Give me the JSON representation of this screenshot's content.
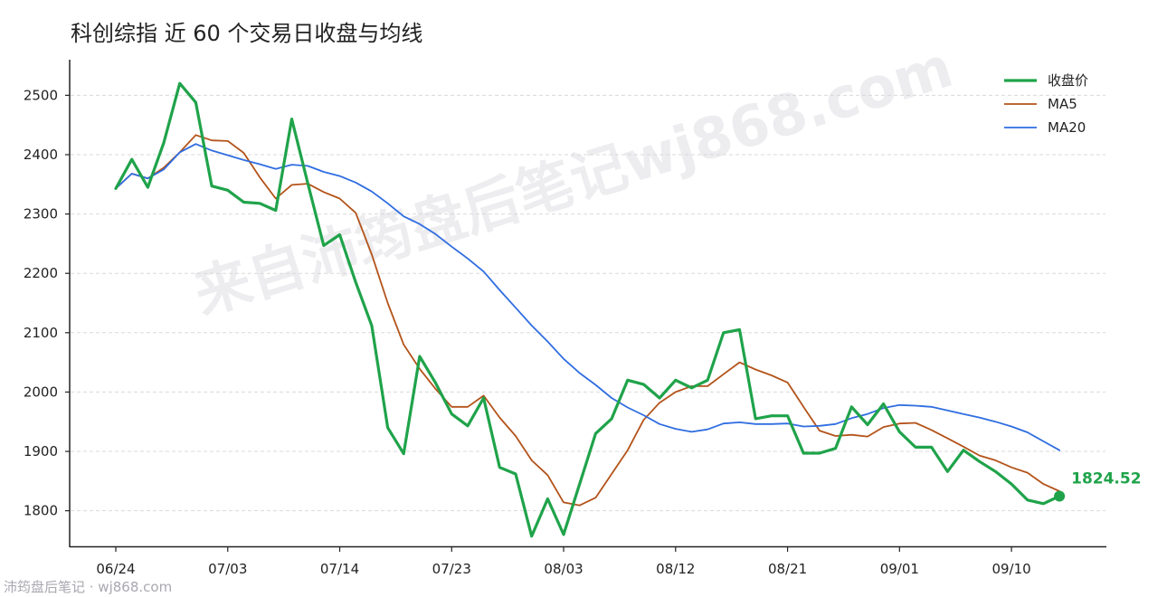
{
  "chart_data": {
    "type": "line",
    "title": "科创综指 近 60 个交易日收盘与均线",
    "xlabel": "",
    "ylabel": "",
    "x_ticks": [
      "06/24",
      "07/03",
      "07/14",
      "07/23",
      "08/03",
      "08/12",
      "08/21",
      "09/01",
      "09/10"
    ],
    "x_tick_index": [
      0,
      7,
      14,
      21,
      28,
      35,
      42,
      49,
      56
    ],
    "y_ticks": [
      1800,
      1900,
      2000,
      2100,
      2200,
      2300,
      2400,
      2500
    ],
    "ylim": [
      1740,
      2560
    ],
    "grid": "horizontal dashed",
    "legend_position": "top-right",
    "series": [
      {
        "name": "收盘价",
        "color": "#1fa34a",
        "values": [
          2343,
          2392,
          2345,
          2420,
          2520,
          2488,
          2347,
          2340,
          2320,
          2318,
          2306,
          2460,
          2352,
          2247,
          2265,
          2185,
          2112,
          1940,
          1896,
          2060,
          2015,
          1963,
          1943,
          1990,
          1873,
          1862,
          1757,
          1820,
          1760,
          1845,
          1930,
          1955,
          2020,
          2013,
          1990,
          2020,
          2007,
          2020,
          2100,
          2105,
          1955,
          1960,
          1960,
          1897,
          1897,
          1905,
          1975,
          1945,
          1980,
          1933,
          1907,
          1907,
          1866,
          1902,
          1883,
          1866,
          1845,
          1818,
          1812,
          1824.52
        ]
      },
      {
        "name": "MA5",
        "color": "#b3531a",
        "values": [
          2343,
          2368,
          2360,
          2378,
          2404,
          2433,
          2424,
          2423,
          2403,
          2362,
          2326,
          2349,
          2351,
          2337,
          2326,
          2302,
          2232,
          2150,
          2080,
          2039,
          2005,
          1975,
          1975,
          1994,
          1957,
          1926,
          1885,
          1860,
          1814,
          1809,
          1822,
          1862,
          1902,
          1953,
          1982,
          2000,
          2010,
          2010,
          2030,
          2050,
          2038,
          2028,
          2016,
          1975,
          1935,
          1926,
          1928,
          1925,
          1941,
          1947,
          1948,
          1936,
          1922,
          1908,
          1893,
          1885,
          1873,
          1864,
          1845,
          1833
        ]
      },
      {
        "name": "MA20",
        "color": "#2f6de1",
        "values": [
          2343,
          2368,
          2360,
          2375,
          2404,
          2418,
          2407,
          2399,
          2391,
          2384,
          2376,
          2383,
          2381,
          2371,
          2364,
          2353,
          2338,
          2318,
          2296,
          2283,
          2266,
          2245,
          2225,
          2203,
          2172,
          2142,
          2112,
          2085,
          2056,
          2032,
          2012,
          1990,
          1974,
          1961,
          1946,
          1938,
          1933,
          1937,
          1947,
          1949,
          1946,
          1946,
          1947,
          1942,
          1943,
          1946,
          1956,
          1963,
          1973,
          1978,
          1977,
          1975,
          1969,
          1963,
          1957,
          1950,
          1942,
          1932,
          1917,
          1902
        ]
      }
    ],
    "end_label": {
      "text": "1824.52",
      "value": 1824.52,
      "color": "#1fa34a"
    }
  },
  "watermark": {
    "text": "来自沛筠盘后笔记wj868.com",
    "footer": "沛筠盘后笔记 · wj868.com"
  }
}
